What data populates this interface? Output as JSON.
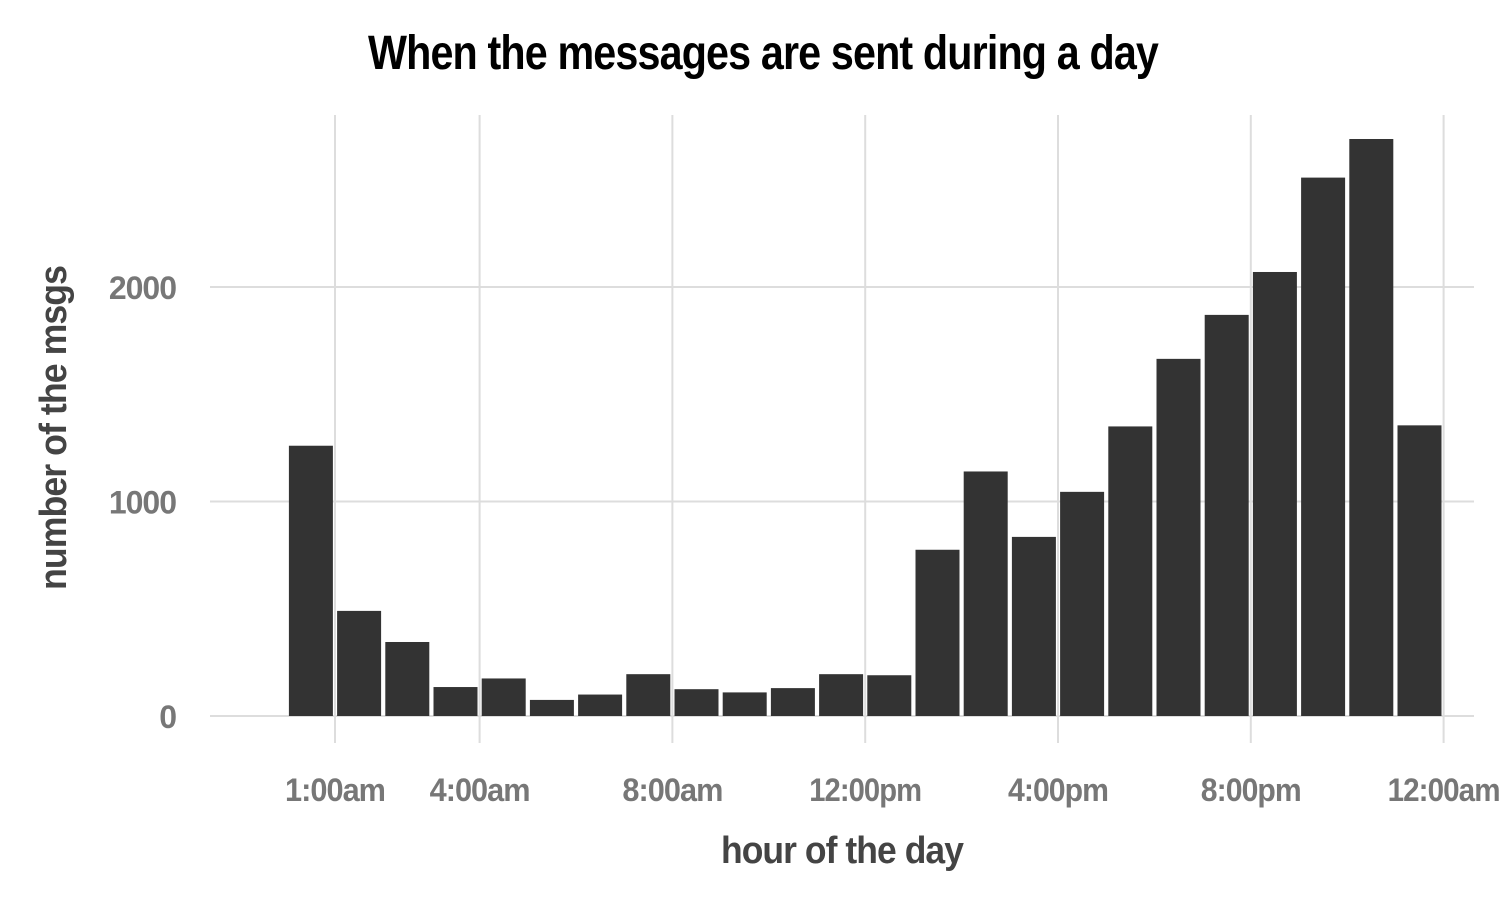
{
  "chart_data": {
    "type": "bar",
    "title": "When the messages are sent during a day",
    "xlabel": "hour of the day",
    "ylabel": "number of the msgs",
    "x": [
      0,
      1,
      2,
      3,
      4,
      5,
      6,
      7,
      8,
      9,
      10,
      11,
      12,
      13,
      14,
      15,
      16,
      17,
      18,
      19,
      20,
      21,
      22,
      23
    ],
    "values": [
      1260,
      490,
      345,
      135,
      175,
      75,
      100,
      195,
      125,
      110,
      130,
      195,
      190,
      775,
      1140,
      835,
      1045,
      1350,
      1665,
      1870,
      2070,
      2510,
      2690,
      1355
    ],
    "x_ticks": [
      {
        "value": 1,
        "label": "1:00am"
      },
      {
        "value": 4,
        "label": "4:00am"
      },
      {
        "value": 8,
        "label": "8:00am"
      },
      {
        "value": 12,
        "label": "12:00pm"
      },
      {
        "value": 16,
        "label": "4:00pm"
      },
      {
        "value": 20,
        "label": "8:00pm"
      },
      {
        "value": 24,
        "label": "12:00am"
      }
    ],
    "y_ticks": [
      {
        "value": 0,
        "label": "0"
      },
      {
        "value": 1000,
        "label": "1000"
      },
      {
        "value": 2000,
        "label": "2000"
      }
    ],
    "xlim": [
      -1.5,
      24.0
    ],
    "ylim": [
      0,
      2800
    ],
    "grid": true,
    "colors": {
      "bar": "#333333",
      "grid": "#dddddd",
      "tick": "#777777",
      "axis_label": "#444444"
    }
  }
}
